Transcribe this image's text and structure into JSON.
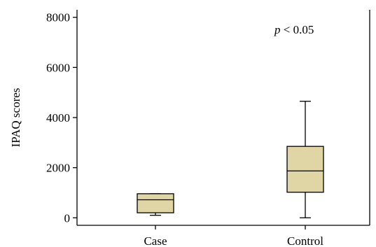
{
  "chart_data": {
    "type": "box",
    "ylabel": "IPAQ scores",
    "xlabel": "",
    "ylim": [
      -300,
      8300
    ],
    "yticks": [
      0,
      2000,
      4000,
      6000,
      8000
    ],
    "categories": [
      "Case",
      "Control"
    ],
    "boxes": [
      {
        "category": "Case",
        "whisker_low": 100,
        "q1": 200,
        "median": 720,
        "q3": 960,
        "whisker_high": 960
      },
      {
        "category": "Control",
        "whisker_low": 0,
        "q1": 1020,
        "median": 1870,
        "q3": 2850,
        "whisker_high": 4650
      }
    ],
    "box_fill": "#e0d5a4",
    "annotation": {
      "italic": "p",
      "rest": " < 0.05"
    },
    "grid": false
  }
}
